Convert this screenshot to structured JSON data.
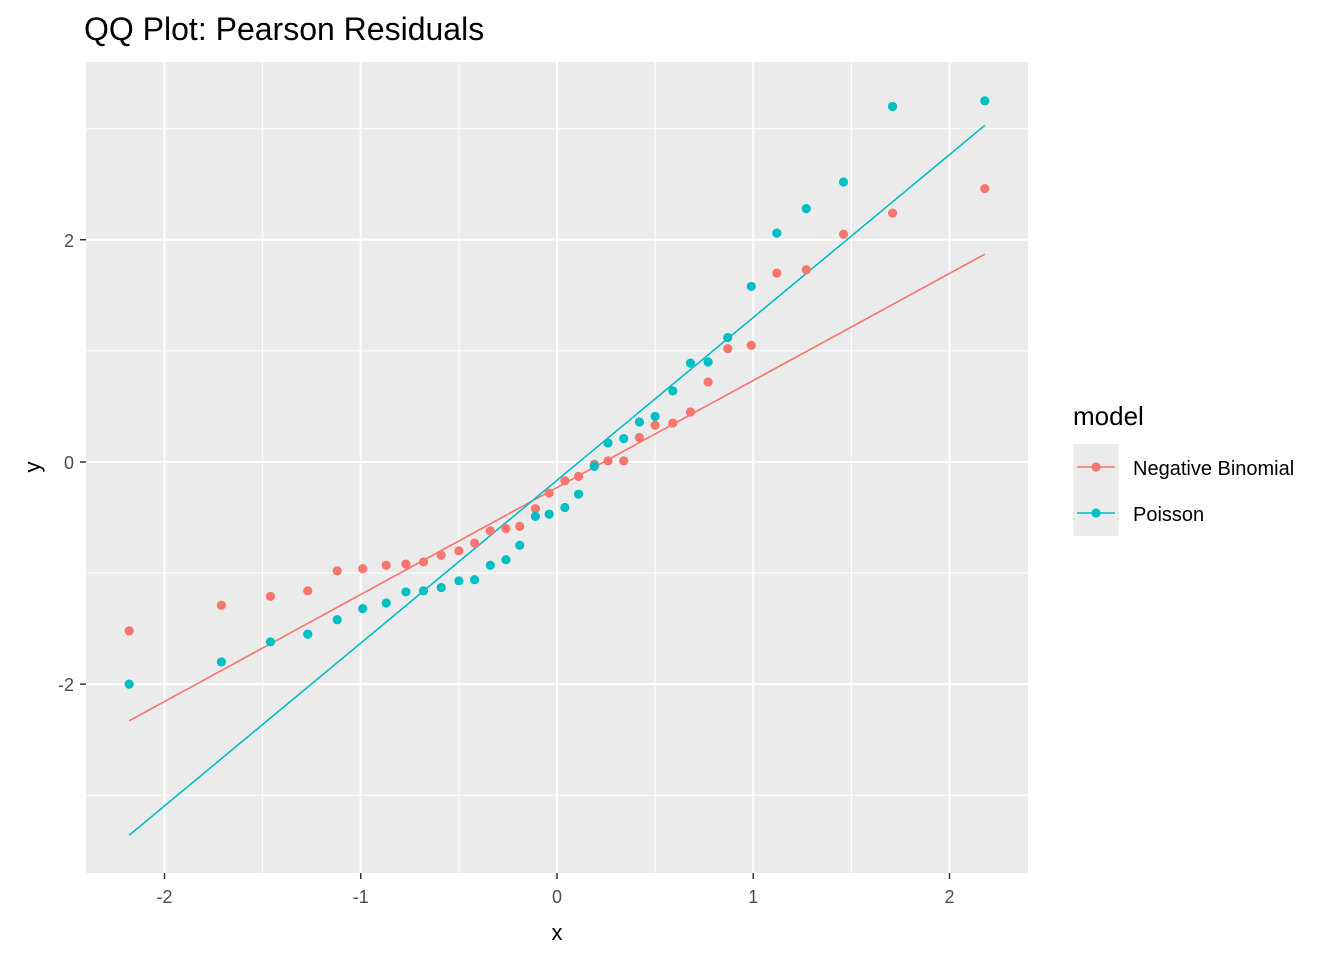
{
  "chart_data": {
    "type": "scatter",
    "title": "QQ Plot: Pearson Residuals",
    "xlabel": "x",
    "ylabel": "y",
    "xlim": [
      -2.4,
      2.4
    ],
    "ylim": [
      -3.7,
      3.6
    ],
    "x_ticks": [
      -2,
      -1,
      0,
      1,
      2
    ],
    "y_ticks": [
      -2,
      0,
      2
    ],
    "x_tick_labels": [
      "-2",
      "-1",
      "0",
      "1",
      "2"
    ],
    "y_tick_labels": [
      "-2",
      "0",
      "2"
    ],
    "grid": true,
    "legend": {
      "title": "model",
      "position": "right",
      "entries": [
        "Negative Binomial",
        "Poisson"
      ]
    },
    "series": [
      {
        "name": "Negative Binomial",
        "color": "#F8766D",
        "points": [
          [
            -2.18,
            -1.52
          ],
          [
            -1.71,
            -1.29
          ],
          [
            -1.46,
            -1.21
          ],
          [
            -1.27,
            -1.16
          ],
          [
            -1.12,
            -0.98
          ],
          [
            -0.99,
            -0.96
          ],
          [
            -0.87,
            -0.93
          ],
          [
            -0.77,
            -0.92
          ],
          [
            -0.68,
            -0.9
          ],
          [
            -0.59,
            -0.84
          ],
          [
            -0.5,
            -0.8
          ],
          [
            -0.42,
            -0.73
          ],
          [
            -0.34,
            -0.62
          ],
          [
            -0.26,
            -0.6
          ],
          [
            -0.19,
            -0.58
          ],
          [
            -0.11,
            -0.42
          ],
          [
            -0.04,
            -0.28
          ],
          [
            0.04,
            -0.17
          ],
          [
            0.11,
            -0.13
          ],
          [
            0.19,
            -0.02
          ],
          [
            0.26,
            0.01
          ],
          [
            0.34,
            0.01
          ],
          [
            0.42,
            0.22
          ],
          [
            0.5,
            0.33
          ],
          [
            0.59,
            0.35
          ],
          [
            0.68,
            0.45
          ],
          [
            0.77,
            0.72
          ],
          [
            0.87,
            1.02
          ],
          [
            0.99,
            1.05
          ],
          [
            1.12,
            1.7
          ],
          [
            1.27,
            1.73
          ],
          [
            1.46,
            2.05
          ],
          [
            1.71,
            2.24
          ],
          [
            2.18,
            2.46
          ]
        ],
        "line": [
          [
            -2.18,
            -2.33
          ],
          [
            2.18,
            1.87
          ]
        ]
      },
      {
        "name": "Poisson",
        "color": "#00BFC4",
        "points": [
          [
            -2.18,
            -2.0
          ],
          [
            -1.71,
            -1.8
          ],
          [
            -1.46,
            -1.62
          ],
          [
            -1.27,
            -1.55
          ],
          [
            -1.12,
            -1.42
          ],
          [
            -0.99,
            -1.32
          ],
          [
            -0.87,
            -1.27
          ],
          [
            -0.77,
            -1.17
          ],
          [
            -0.68,
            -1.16
          ],
          [
            -0.59,
            -1.13
          ],
          [
            -0.5,
            -1.07
          ],
          [
            -0.42,
            -1.06
          ],
          [
            -0.34,
            -0.93
          ],
          [
            -0.26,
            -0.88
          ],
          [
            -0.19,
            -0.75
          ],
          [
            -0.11,
            -0.49
          ],
          [
            -0.04,
            -0.47
          ],
          [
            0.04,
            -0.41
          ],
          [
            0.11,
            -0.29
          ],
          [
            0.19,
            -0.04
          ],
          [
            0.26,
            0.17
          ],
          [
            0.34,
            0.21
          ],
          [
            0.42,
            0.36
          ],
          [
            0.5,
            0.41
          ],
          [
            0.59,
            0.64
          ],
          [
            0.68,
            0.89
          ],
          [
            0.77,
            0.9
          ],
          [
            0.87,
            1.12
          ],
          [
            0.99,
            1.58
          ],
          [
            1.12,
            2.06
          ],
          [
            1.27,
            2.28
          ],
          [
            1.46,
            2.52
          ],
          [
            1.71,
            3.2
          ],
          [
            2.18,
            3.25
          ]
        ],
        "line": [
          [
            -2.18,
            -3.36
          ],
          [
            2.18,
            3.03
          ]
        ]
      }
    ]
  }
}
